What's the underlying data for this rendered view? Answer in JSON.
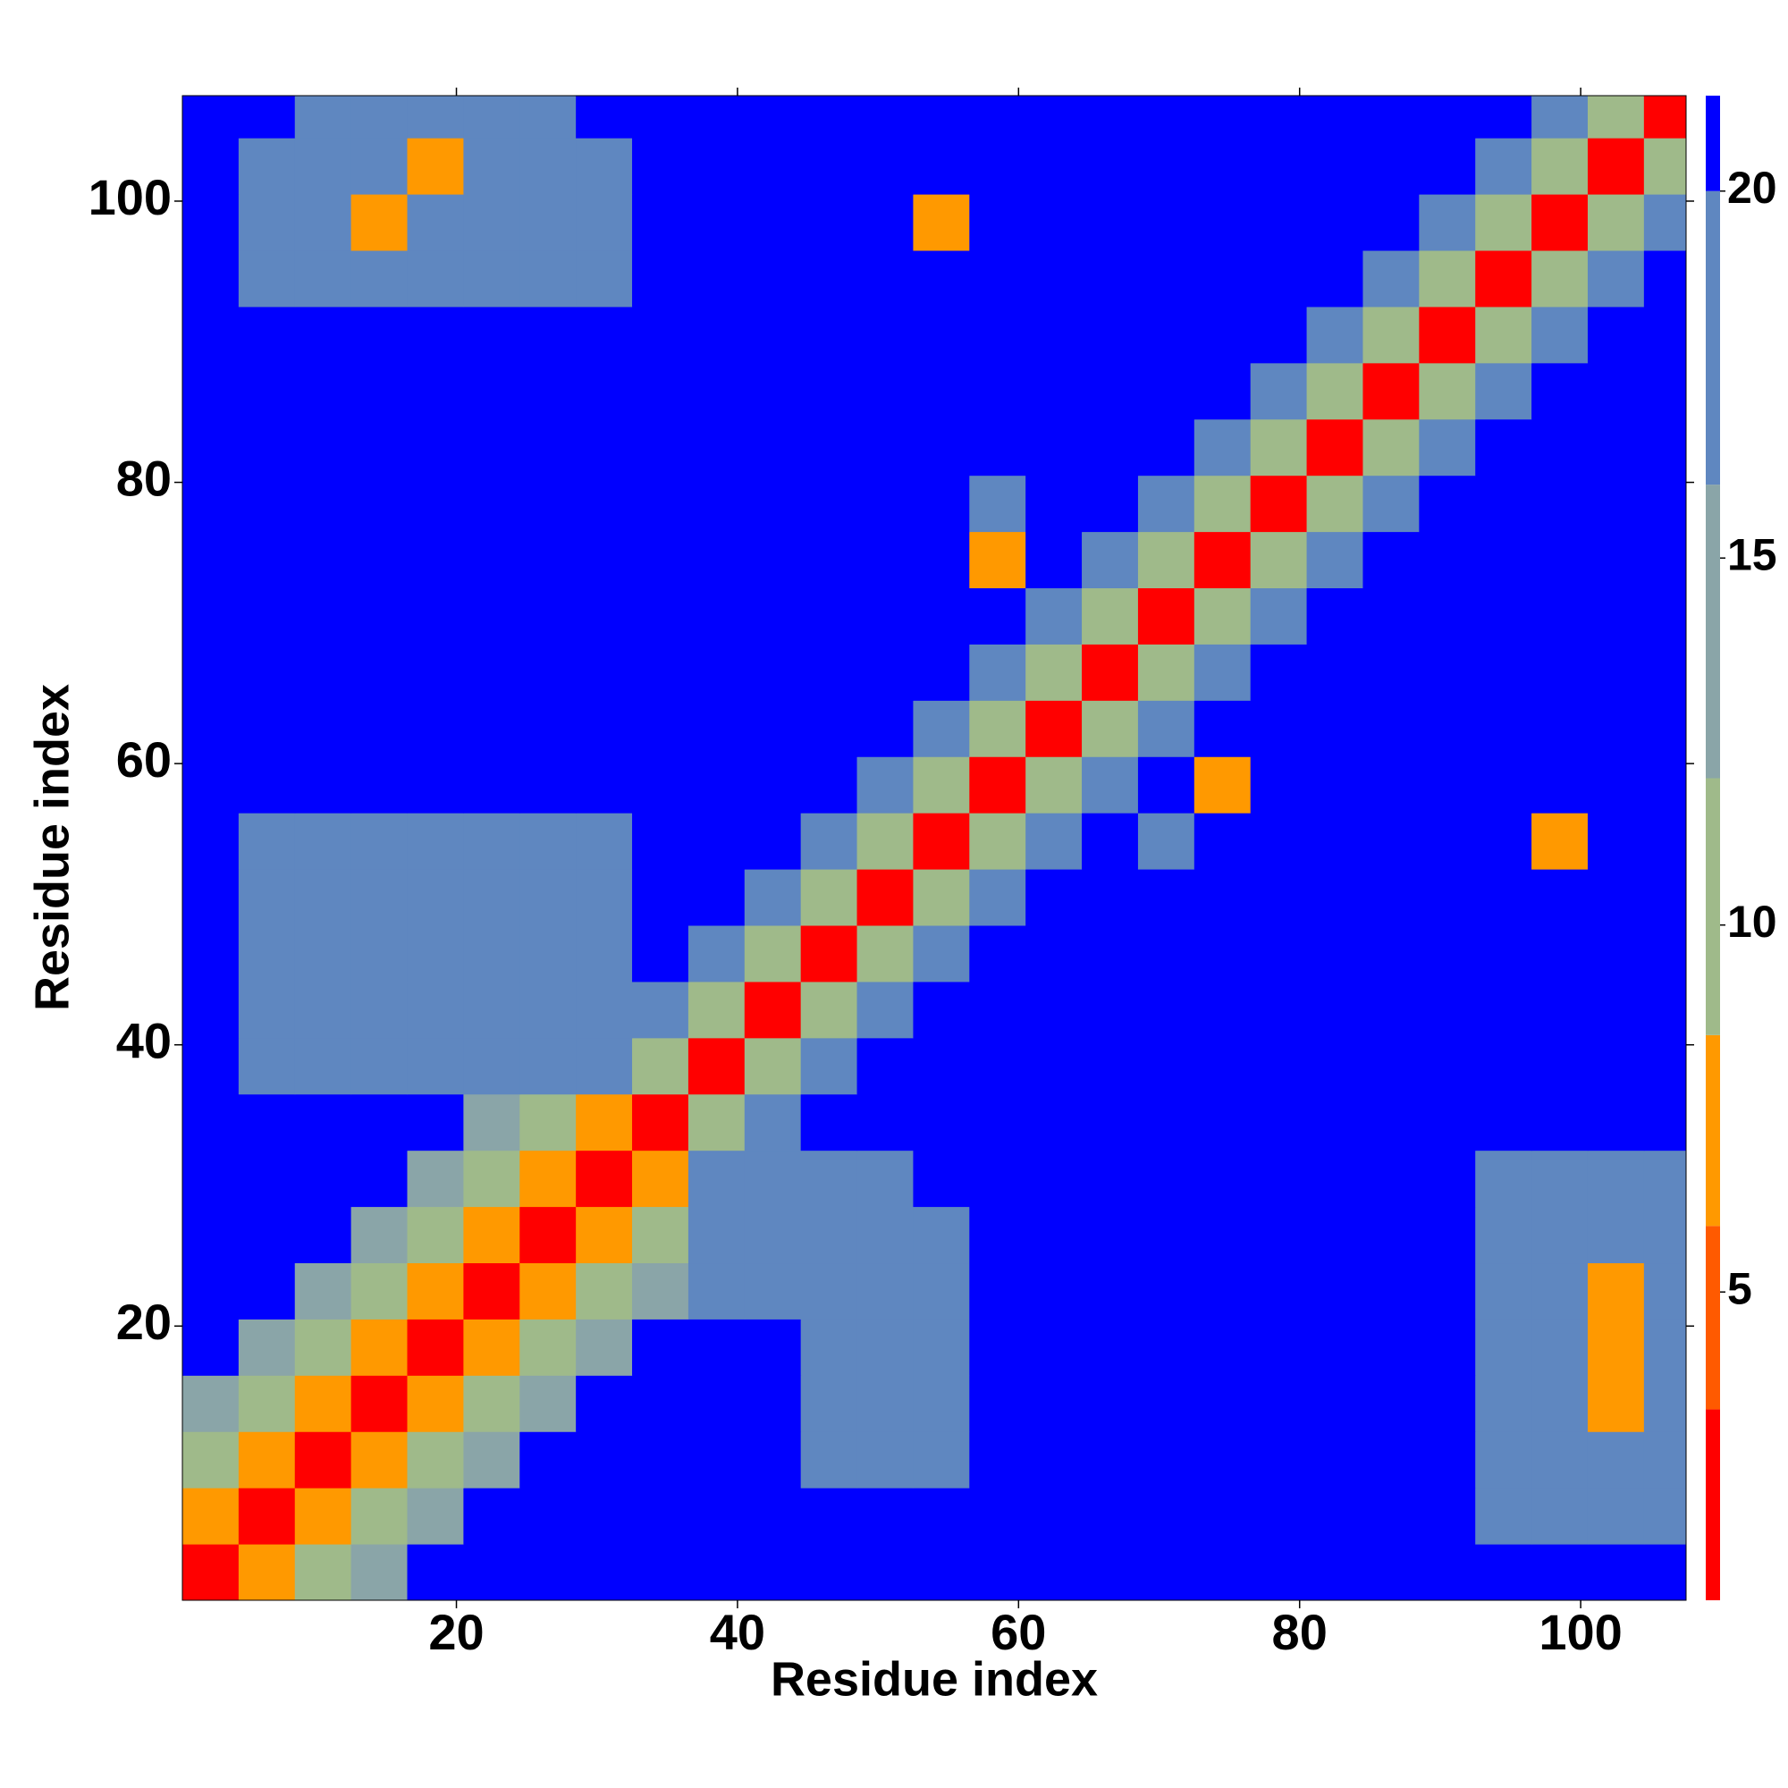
{
  "chart_data": {
    "type": "heatmap",
    "xlabel": "Residue index",
    "ylabel": "Residue index",
    "xbins": [
      0.5,
      4.5,
      8.5,
      12.5,
      16.5,
      20.5,
      24.5,
      28.5,
      32.5,
      36.5,
      40.5,
      44.5,
      48.5,
      52.5,
      56.5,
      60.5,
      64.5,
      68.5,
      72.5,
      76.5,
      80.5,
      84.5,
      88.5,
      92.5,
      96.5,
      100.5,
      104.5,
      107.5
    ],
    "ybins": [
      0.5,
      4.5,
      8.5,
      12.5,
      16.5,
      20.5,
      24.5,
      28.5,
      32.5,
      36.5,
      40.5,
      44.5,
      48.5,
      52.5,
      56.5,
      60.5,
      64.5,
      68.5,
      72.5,
      76.5,
      80.5,
      84.5,
      88.5,
      92.5,
      96.5,
      100.5,
      104.5,
      107.5
    ],
    "xlim": [
      0.5,
      107.5
    ],
    "ylim": [
      0.5,
      107.5
    ],
    "xticks": [
      20,
      40,
      60,
      80,
      100
    ],
    "yticks": [
      20,
      40,
      60,
      80,
      100
    ],
    "clim": [
      0.8,
      21.3
    ],
    "cticks": [
      5,
      10,
      15,
      20
    ],
    "colorscale": [
      [
        3.4,
        "#ff0000"
      ],
      [
        5.9,
        "#ff5a00"
      ],
      [
        8.5,
        "#ff9900"
      ],
      [
        12,
        "#9fba8a"
      ],
      [
        16,
        "#8aa5a8"
      ],
      [
        20,
        "#5f87c0"
      ],
      [
        21.3,
        "#0000ff"
      ]
    ],
    "z": [
      [
        2,
        7,
        11,
        15,
        21,
        21,
        21,
        21,
        21,
        21,
        21,
        21,
        21,
        21,
        21,
        21,
        21,
        21,
        21,
        21,
        21,
        21,
        21,
        21,
        21,
        21,
        21
      ],
      [
        7,
        2,
        7,
        11,
        15,
        21,
        21,
        21,
        21,
        21,
        21,
        21,
        21,
        21,
        21,
        21,
        21,
        21,
        21,
        21,
        21,
        21,
        21,
        17,
        17,
        17,
        17
      ],
      [
        11,
        7,
        2,
        7,
        11,
        15,
        21,
        21,
        21,
        21,
        21,
        17,
        17,
        17,
        21,
        21,
        21,
        21,
        21,
        21,
        21,
        21,
        21,
        17,
        17,
        17,
        17
      ],
      [
        15,
        11,
        7,
        2,
        7,
        11,
        15,
        21,
        21,
        21,
        21,
        17,
        17,
        17,
        21,
        21,
        21,
        21,
        21,
        21,
        21,
        21,
        21,
        17,
        17,
        6,
        17
      ],
      [
        21,
        15,
        11,
        7,
        2,
        7,
        11,
        15,
        21,
        21,
        21,
        17,
        17,
        17,
        21,
        21,
        21,
        21,
        21,
        21,
        21,
        21,
        21,
        17,
        17,
        6,
        17
      ],
      [
        21,
        21,
        15,
        11,
        7,
        2,
        7,
        11,
        15,
        17,
        17,
        17,
        17,
        17,
        21,
        21,
        21,
        21,
        21,
        21,
        21,
        21,
        21,
        17,
        17,
        6,
        17
      ],
      [
        21,
        21,
        21,
        15,
        11,
        7,
        2,
        7,
        11,
        17,
        17,
        17,
        17,
        17,
        21,
        21,
        21,
        21,
        21,
        21,
        21,
        21,
        21,
        17,
        17,
        17,
        17
      ],
      [
        21,
        21,
        21,
        21,
        15,
        11,
        7,
        2,
        7,
        17,
        17,
        17,
        17,
        21,
        21,
        21,
        21,
        21,
        21,
        21,
        21,
        21,
        21,
        17,
        17,
        17,
        17
      ],
      [
        21,
        21,
        21,
        21,
        21,
        15,
        11,
        7,
        2,
        10,
        17,
        21,
        21,
        21,
        21,
        21,
        21,
        21,
        21,
        21,
        21,
        21,
        21,
        21,
        21,
        21,
        21
      ],
      [
        21,
        17,
        17,
        17,
        17,
        17,
        17,
        17,
        10,
        2,
        10,
        17,
        21,
        21,
        21,
        21,
        21,
        21,
        21,
        21,
        21,
        21,
        21,
        21,
        21,
        21,
        21
      ],
      [
        21,
        17,
        17,
        17,
        17,
        17,
        17,
        17,
        17,
        10,
        2,
        10,
        17,
        21,
        21,
        21,
        21,
        21,
        21,
        21,
        21,
        21,
        21,
        21,
        21,
        21,
        21
      ],
      [
        21,
        17,
        17,
        17,
        17,
        17,
        17,
        17,
        21,
        17,
        10,
        2,
        10,
        17,
        21,
        21,
        21,
        21,
        21,
        21,
        21,
        21,
        21,
        21,
        21,
        21,
        21
      ],
      [
        21,
        17,
        17,
        17,
        17,
        17,
        17,
        17,
        21,
        21,
        17,
        10,
        2,
        10,
        17,
        21,
        21,
        21,
        21,
        21,
        21,
        21,
        21,
        21,
        21,
        21,
        21
      ],
      [
        21,
        17,
        17,
        17,
        17,
        17,
        17,
        17,
        21,
        21,
        21,
        17,
        10,
        2,
        10,
        17,
        21,
        17,
        21,
        21,
        21,
        21,
        21,
        21,
        6,
        21,
        21
      ],
      [
        21,
        21,
        21,
        21,
        21,
        21,
        21,
        21,
        21,
        21,
        21,
        21,
        17,
        10,
        2,
        10,
        17,
        21,
        6,
        21,
        21,
        21,
        21,
        21,
        21,
        21,
        21
      ],
      [
        21,
        21,
        21,
        21,
        21,
        21,
        21,
        21,
        21,
        21,
        21,
        21,
        21,
        17,
        10,
        2,
        10,
        17,
        21,
        21,
        21,
        21,
        21,
        21,
        21,
        21,
        21
      ],
      [
        21,
        21,
        21,
        21,
        21,
        21,
        21,
        21,
        21,
        21,
        21,
        21,
        21,
        21,
        17,
        10,
        2,
        10,
        17,
        21,
        21,
        21,
        21,
        21,
        21,
        21,
        21
      ],
      [
        21,
        21,
        21,
        21,
        21,
        21,
        21,
        21,
        21,
        21,
        21,
        21,
        21,
        21,
        21,
        17,
        10,
        2,
        10,
        17,
        21,
        21,
        21,
        21,
        21,
        21,
        21
      ],
      [
        21,
        21,
        21,
        21,
        21,
        21,
        21,
        21,
        21,
        21,
        21,
        21,
        21,
        21,
        6,
        21,
        17,
        10,
        2,
        10,
        17,
        21,
        21,
        21,
        21,
        21,
        21
      ],
      [
        21,
        21,
        21,
        21,
        21,
        21,
        21,
        21,
        21,
        21,
        21,
        21,
        21,
        21,
        17,
        21,
        21,
        17,
        10,
        2,
        10,
        17,
        21,
        21,
        21,
        21,
        21
      ],
      [
        21,
        21,
        21,
        21,
        21,
        21,
        21,
        21,
        21,
        21,
        21,
        21,
        21,
        21,
        21,
        21,
        21,
        21,
        17,
        10,
        2,
        10,
        17,
        21,
        21,
        21,
        21
      ],
      [
        21,
        21,
        21,
        21,
        21,
        21,
        21,
        21,
        21,
        21,
        21,
        21,
        21,
        21,
        21,
        21,
        21,
        21,
        21,
        17,
        10,
        2,
        10,
        17,
        21,
        21,
        21
      ],
      [
        21,
        21,
        21,
        21,
        21,
        21,
        21,
        21,
        21,
        21,
        21,
        21,
        21,
        21,
        21,
        21,
        21,
        21,
        21,
        21,
        17,
        10,
        2,
        10,
        17,
        21,
        21
      ],
      [
        21,
        17,
        17,
        17,
        17,
        17,
        17,
        17,
        21,
        21,
        21,
        21,
        21,
        21,
        21,
        21,
        21,
        21,
        21,
        21,
        21,
        17,
        10,
        2,
        10,
        17,
        21
      ],
      [
        21,
        17,
        17,
        6,
        17,
        17,
        17,
        17,
        21,
        21,
        21,
        21,
        21,
        6,
        21,
        21,
        21,
        21,
        21,
        21,
        21,
        21,
        17,
        10,
        2,
        10,
        17
      ],
      [
        21,
        17,
        17,
        17,
        6,
        17,
        17,
        17,
        21,
        21,
        21,
        21,
        21,
        21,
        21,
        21,
        21,
        21,
        21,
        21,
        21,
        21,
        21,
        17,
        10,
        2,
        10
      ],
      [
        21,
        21,
        17,
        17,
        17,
        17,
        17,
        21,
        21,
        21,
        21,
        21,
        21,
        21,
        21,
        21,
        21,
        21,
        21,
        21,
        21,
        21,
        21,
        21,
        17,
        10,
        2
      ]
    ]
  }
}
